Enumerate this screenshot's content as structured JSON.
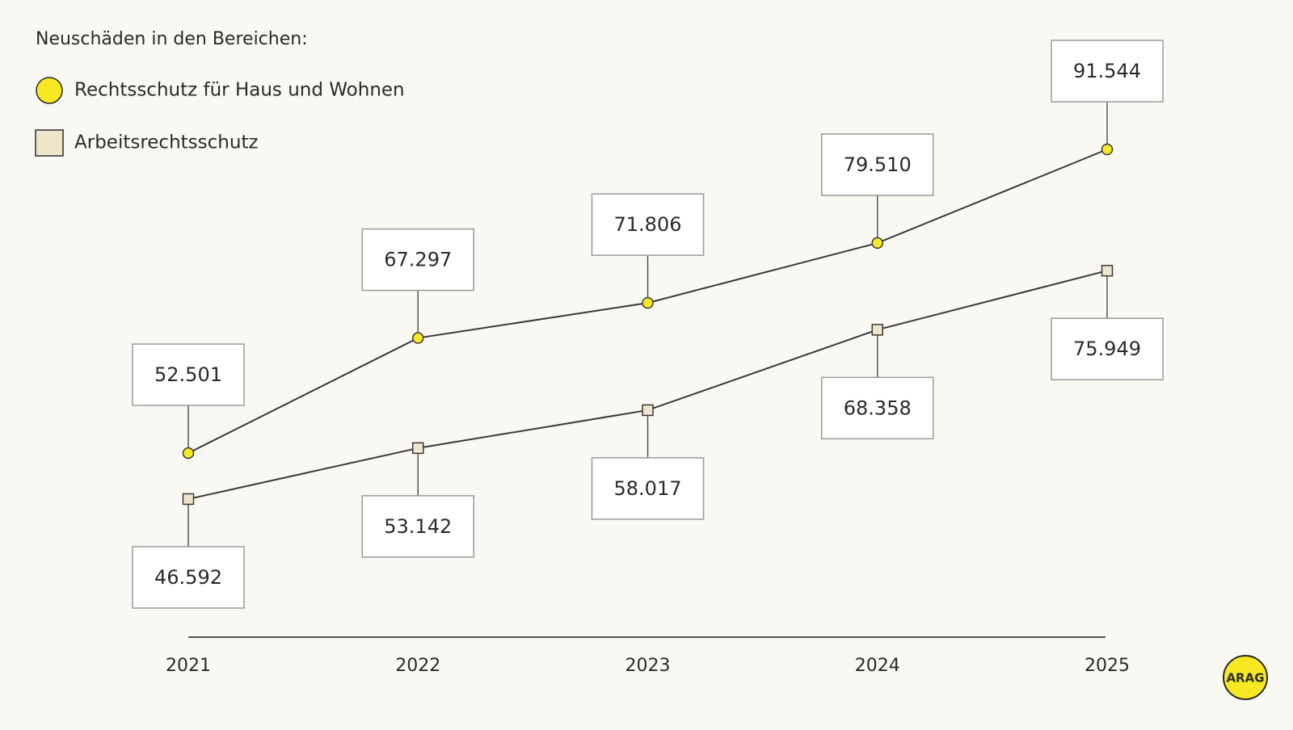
{
  "chart_data": {
    "type": "line",
    "title": "Neuschäden in den Bereichen:",
    "categories": [
      "2021",
      "2022",
      "2023",
      "2024",
      "2025"
    ],
    "series": [
      {
        "name": "Rechtsschutz für Haus und Wohnen",
        "color": "#f6e822",
        "marker": "circle",
        "values": [
          52501,
          67297,
          71806,
          79510,
          91544
        ],
        "value_labels": [
          "52.501",
          "67.297",
          "71.806",
          "79.510",
          "91.544"
        ]
      },
      {
        "name": "Arbeitsrechtsschutz",
        "color": "#efe5cb",
        "marker": "square",
        "values": [
          46592,
          53142,
          58017,
          68358,
          75949
        ],
        "value_labels": [
          "46.592",
          "53.142",
          "58.017",
          "68.358",
          "75.949"
        ]
      }
    ],
    "logo": "ARAG"
  }
}
